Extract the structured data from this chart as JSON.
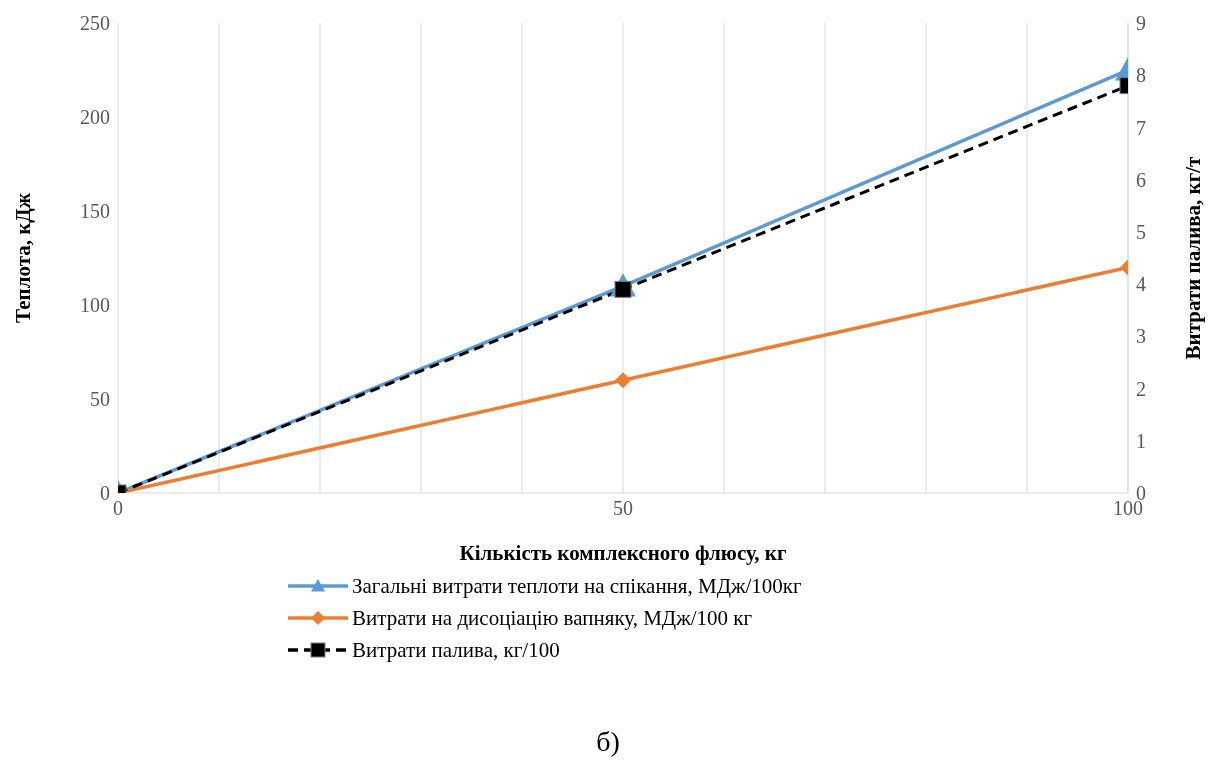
{
  "chart_data": {
    "type": "line",
    "xlabel": "Кількість комплексного флюсу, кг",
    "ylabel": "Теплота, кДж",
    "y2label": "Витрати палива, кг/т",
    "x": [
      0,
      50,
      100
    ],
    "series": [
      {
        "name": "Загальні витрати теплоти на спікання, МДж/100кг",
        "color": "#5b9bd5",
        "values": [
          0,
          110,
          225
        ],
        "marker": "triangle",
        "line_style": "solid"
      },
      {
        "name": "Витрати на дисоціацію вапняку, МДж/100 кг",
        "color": "#ed7d31",
        "values": [
          0,
          60,
          120
        ],
        "marker": "diamond",
        "line_style": "solid"
      },
      {
        "name": "Витрати палива, кг/100",
        "color": "#000000",
        "values": [
          0,
          3.9,
          7.8
        ],
        "marker": "square",
        "line_style": "dashed",
        "axis": "y2"
      }
    ],
    "xlim": [
      0,
      100
    ],
    "xticks": [
      0,
      {
        "value": 10,
        "label": null
      },
      {
        "value": 20,
        "label": null
      },
      {
        "value": 30,
        "label": null
      },
      {
        "value": 40,
        "label": null
      },
      50,
      {
        "value": 60,
        "label": null
      },
      {
        "value": 70,
        "label": null
      },
      {
        "value": 80,
        "label": null
      },
      {
        "value": 90,
        "label": null
      },
      100
    ],
    "ylim": [
      0,
      250
    ],
    "yticks": [
      0,
      50,
      100,
      150,
      200,
      250
    ],
    "y2lim": [
      0,
      9
    ],
    "y2ticks": [
      0,
      1,
      2,
      3,
      4,
      5,
      6,
      7,
      8,
      9
    ],
    "grid": "x",
    "legend": "bottom",
    "annotations": [
      "б)"
    ]
  }
}
